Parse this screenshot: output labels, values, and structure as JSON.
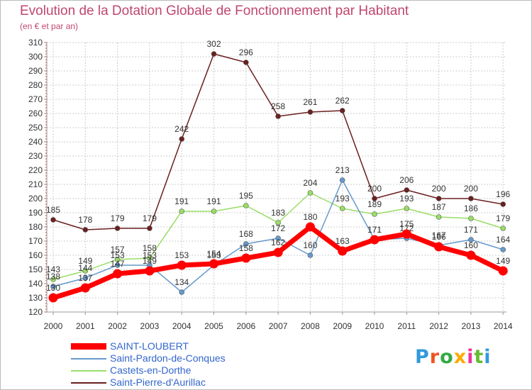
{
  "header": {
    "title": "Evolution de la Dotation Globale de Fonctionnement par Habitant",
    "subtitle": "(en € et par an)"
  },
  "chart_data": {
    "type": "line",
    "x": [
      "2000",
      "2001",
      "2002",
      "2003",
      "2004",
      "2005",
      "2006",
      "2007",
      "2008",
      "2009",
      "2010",
      "2011",
      "2012",
      "2013",
      "2014"
    ],
    "ylim": [
      120,
      310
    ],
    "yticks": [
      120,
      130,
      140,
      150,
      160,
      170,
      180,
      190,
      200,
      210,
      220,
      230,
      240,
      250,
      260,
      270,
      280,
      290,
      300,
      310
    ],
    "series": [
      {
        "name": "Saint-Pierre-d'Aurillac",
        "color": "#6b1f1f",
        "values": [
          185,
          178,
          179,
          179,
          242,
          302,
          296,
          258,
          261,
          262,
          200,
          206,
          200,
          200,
          196
        ]
      },
      {
        "name": "Castets-en-Dorthe",
        "color": "#99dd66",
        "values": [
          143,
          149,
          157,
          158,
          191,
          191,
          195,
          183,
          204,
          193,
          189,
          193,
          187,
          186,
          179
        ]
      },
      {
        "name": "Saint-Pardon-de-Conques",
        "color": "#6699cc",
        "values": [
          138,
          144,
          153,
          153,
          134,
          153,
          168,
          172,
          160,
          213,
          171,
          172,
          167,
          171,
          164
        ]
      },
      {
        "name": "SAINT-LOUBERT",
        "color": "#ff0000",
        "values": [
          130,
          137,
          147,
          149,
          153,
          154,
          158,
          162,
          180,
          163,
          171,
          175,
          166,
          160,
          149
        ]
      }
    ]
  },
  "legend": {
    "items": [
      {
        "label": "SAINT-LOUBERT",
        "color": "#ff0000"
      },
      {
        "label": "Saint-Pardon-de-Conques",
        "color": "#6699cc"
      },
      {
        "label": "Castets-en-Dorthe",
        "color": "#99dd66"
      },
      {
        "label": "Saint-Pierre-d'Aurillac",
        "color": "#6b1f1f"
      }
    ]
  },
  "logo": {
    "text": "Proxiti"
  }
}
